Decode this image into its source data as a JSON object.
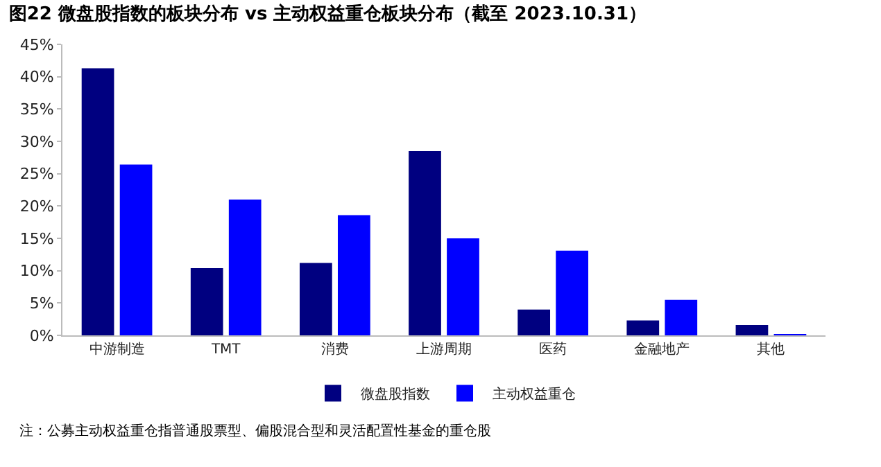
{
  "chart_data": {
    "type": "bar",
    "title": "图22 微盘股指数的板块分布 vs 主动权益重仓板块分布（截至 2023.10.31）",
    "categories": [
      "中游制造",
      "TMT",
      "消费",
      "上游周期",
      "医药",
      "金融地产",
      "其他"
    ],
    "series": [
      {
        "name": "微盘股指数",
        "color": "#000080",
        "values": [
          41.3,
          10.4,
          11.2,
          28.5,
          4.0,
          2.3,
          1.6
        ]
      },
      {
        "name": "主动权益重仓",
        "color": "#0000ff",
        "values": [
          26.4,
          21.0,
          18.6,
          15.0,
          13.1,
          5.5,
          0.1
        ]
      }
    ],
    "ylim": [
      0,
      45
    ],
    "yticks": [
      {
        "value": 0,
        "label": "0%"
      },
      {
        "value": 5,
        "label": "5%"
      },
      {
        "value": 10,
        "label": "10%"
      },
      {
        "value": 15,
        "label": "15%"
      },
      {
        "value": 20,
        "label": "20%"
      },
      {
        "value": 25,
        "label": "25%"
      },
      {
        "value": 30,
        "label": "30%"
      },
      {
        "value": 35,
        "label": "35%"
      },
      {
        "value": 40,
        "label": "40%"
      },
      {
        "value": 45,
        "label": "45%"
      }
    ],
    "legend": "bottom",
    "annotations": [
      "注：公募主动权益重仓指普通股票型、偏股混合型和灵活配置性基金的重仓股"
    ]
  }
}
